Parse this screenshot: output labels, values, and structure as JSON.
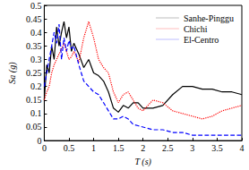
{
  "chart_data": {
    "type": "line",
    "x_label": "T (s)",
    "y_label": "Sa (g)",
    "x": [
      0,
      0.05,
      0.1,
      0.15,
      0.2,
      0.25,
      0.3,
      0.35,
      0.4,
      0.45,
      0.5,
      0.55,
      0.6,
      0.7,
      0.8,
      0.9,
      1,
      1.1,
      1.2,
      1.3,
      1.4,
      1.5,
      1.6,
      1.7,
      1.8,
      1.9,
      2,
      2.2,
      2.4,
      2.6,
      2.8,
      3,
      3.2,
      3.4,
      3.6,
      3.8,
      4
    ],
    "series": [
      {
        "name": "Sanhe-Pinggu",
        "color": "#000000",
        "line_style": "solid",
        "values": [
          0.15,
          0.28,
          0.25,
          0.35,
          0.3,
          0.42,
          0.35,
          0.4,
          0.44,
          0.38,
          0.42,
          0.33,
          0.36,
          0.32,
          0.27,
          0.3,
          0.25,
          0.24,
          0.22,
          0.18,
          0.12,
          0.105,
          0.13,
          0.12,
          0.14,
          0.14,
          0.12,
          0.12,
          0.13,
          0.17,
          0.2,
          0.2,
          0.19,
          0.19,
          0.18,
          0.18,
          0.17
        ]
      },
      {
        "name": "Chichi",
        "color": "#ff0000",
        "line_style": "dotted",
        "values": [
          0.15,
          0.18,
          0.2,
          0.25,
          0.28,
          0.3,
          0.32,
          0.34,
          0.36,
          0.33,
          0.3,
          0.31,
          0.33,
          0.29,
          0.38,
          0.44,
          0.38,
          0.3,
          0.27,
          0.25,
          0.18,
          0.14,
          0.17,
          0.18,
          0.15,
          0.12,
          0.11,
          0.15,
          0.14,
          0.11,
          0.1,
          0.09,
          0.08,
          0.09,
          0.11,
          0.12,
          0.13
        ]
      },
      {
        "name": "El-Centro",
        "color": "#0000ff",
        "line_style": "dashed",
        "values": [
          0.2,
          0.25,
          0.3,
          0.35,
          0.4,
          0.36,
          0.43,
          0.3,
          0.38,
          0.33,
          0.37,
          0.34,
          0.35,
          0.28,
          0.22,
          0.2,
          0.18,
          0.17,
          0.14,
          0.11,
          0.08,
          0.08,
          0.09,
          0.08,
          0.06,
          0.055,
          0.05,
          0.04,
          0.04,
          0.03,
          0.03,
          0.02,
          0.02,
          0.02,
          0.02,
          0.02,
          0.02
        ]
      }
    ],
    "xlim": [
      0,
      4
    ],
    "xticks": [
      0,
      0.5,
      1,
      1.5,
      2,
      2.5,
      3,
      3.5,
      4
    ],
    "ylim": [
      0,
      0.5
    ],
    "yticks": [
      0,
      0.05,
      0.1,
      0.15,
      0.2,
      0.25,
      0.3,
      0.35,
      0.4,
      0.45,
      0.5
    ],
    "grid": false,
    "legend": "upper right"
  }
}
